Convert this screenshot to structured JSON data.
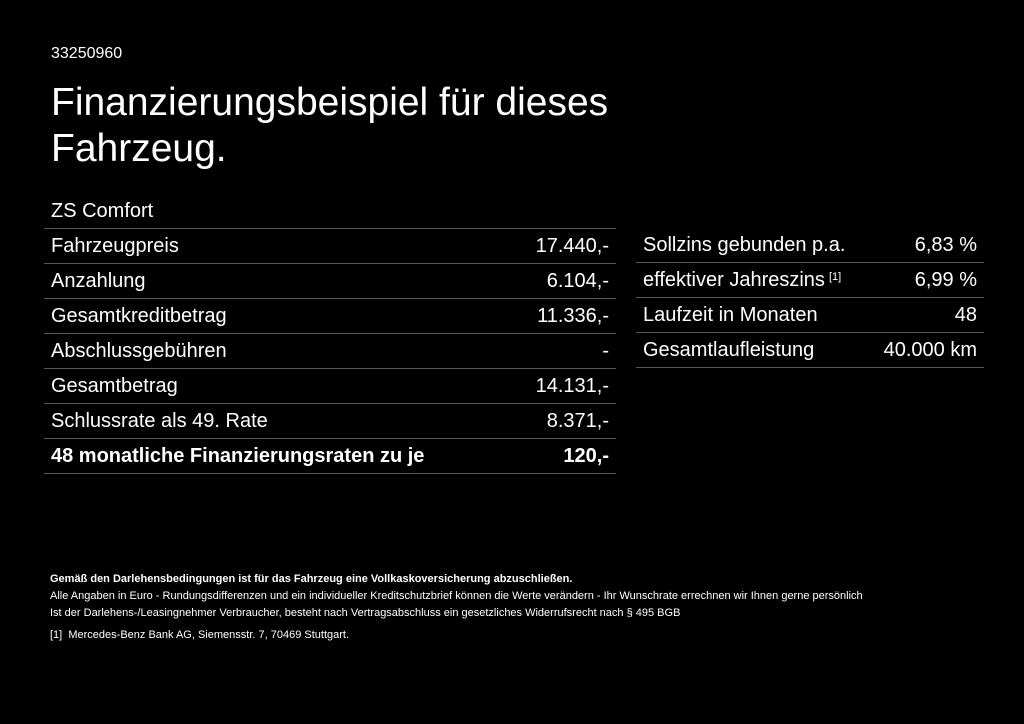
{
  "header": {
    "id": "33250960",
    "title": "Finanzierungsbeispiel für dieses Fahrzeug."
  },
  "model": "ZS Comfort",
  "left_table": {
    "rows": [
      {
        "label": "Fahrzeugpreis",
        "value": "17.440,-"
      },
      {
        "label": "Anzahlung",
        "value": "6.104,-"
      },
      {
        "label": "Gesamtkreditbetrag",
        "value": "11.336,-"
      },
      {
        "label": "Abschlussgebühren",
        "value": "-"
      },
      {
        "label": "Gesamtbetrag",
        "value": "14.131,-"
      },
      {
        "label": "Schlussrate als 49. Rate",
        "value": "8.371,-"
      },
      {
        "label": "48 monatliche Finanzierungsraten zu je",
        "value": "120,-"
      }
    ]
  },
  "right_table": {
    "rows": [
      {
        "label": "Sollzins gebunden p.a.",
        "value": "6,83 %"
      },
      {
        "label": "effektiver Jahreszins",
        "note": "[1]",
        "value": "6,99 %"
      },
      {
        "label": "Laufzeit in Monaten",
        "value": "48"
      },
      {
        "label": "Gesamtlaufleistung",
        "value": "40.000 km"
      }
    ]
  },
  "footer": {
    "bold_note": "Gemäß den Darlehensbedingungen ist für das Fahrzeug eine Vollkaskoversicherung abzuschließen.",
    "lines": [
      "Alle Angaben in Euro - Rundungsdifferenzen und ein individueller Kreditschutzbrief können die Werte verändern - Ihr Wunschrate errechnen wir Ihnen gerne persönlich",
      "Ist der Darlehens-/Leasingnehmer Verbraucher, besteht nach Vertragsabschluss ein gesetzliches Widerrufsrecht nach § 495 BGB"
    ],
    "footnote": {
      "marker": "[1]",
      "text": "Mercedes-Benz Bank AG, Siemensstr. 7, 70469 Stuttgart."
    }
  }
}
